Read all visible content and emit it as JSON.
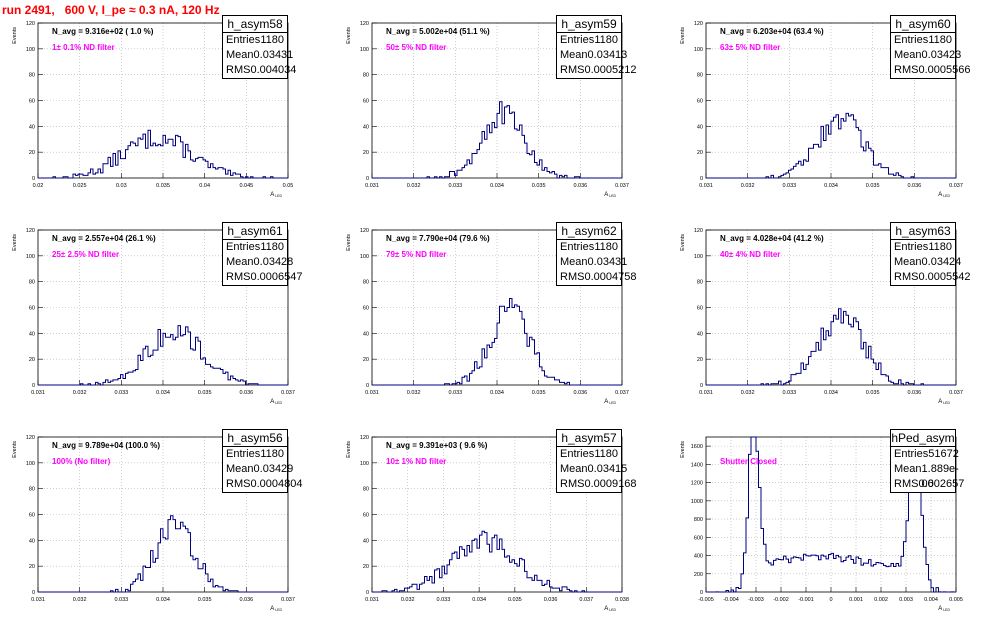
{
  "page": {
    "title": "run 2491,   600 V, I_pe ≈ 0.3 nA, 120 Hz"
  },
  "colors": {
    "hist": "#000080",
    "annotation": "#ff00ff",
    "title": "#ff0000",
    "grid": "#b0b0b0"
  },
  "chart_data": [
    {
      "type": "bar",
      "name": "h_asym58",
      "xlabel": "A_LED",
      "ylabel": "Events",
      "xlim": [
        0.02,
        0.05
      ],
      "ylim": [
        0,
        120
      ],
      "xticks": [
        "0.02",
        "0.025",
        "0.03",
        "0.035",
        "0.04",
        "0.045",
        "0.05"
      ],
      "yticks": [
        "0",
        "20",
        "40",
        "60",
        "80",
        "100",
        "120"
      ],
      "navg": "N_avg = 9.316e+02 ( 1.0 %)",
      "filter": "1± 0.1% ND filter",
      "stats": {
        "title": "h_asym58",
        "entries": "1180",
        "mean": "0.03431",
        "rms": "0.004034"
      },
      "dist": {
        "mean": 0.03431,
        "rms": 0.004034,
        "peak": 38,
        "nbins": 100
      }
    },
    {
      "type": "bar",
      "name": "h_asym59",
      "xlabel": "A_LED",
      "ylabel": "Events",
      "xlim": [
        0.031,
        0.037
      ],
      "ylim": [
        0,
        120
      ],
      "xticks": [
        "0.031",
        "0.032",
        "0.033",
        "0.034",
        "0.035",
        "0.036",
        "0.037"
      ],
      "yticks": [
        "0",
        "20",
        "40",
        "60",
        "80",
        "100",
        "120"
      ],
      "navg": "N_avg = 5.002e+04 (51.1 %)",
      "filter": "50± 5% ND filter",
      "stats": {
        "title": "h_asym59",
        "entries": "1180",
        "mean": "0.03413",
        "rms": "0.0005212"
      },
      "dist": {
        "mean": 0.03413,
        "rms": 0.0005212,
        "peak": 60,
        "nbins": 100
      }
    },
    {
      "type": "bar",
      "name": "h_asym60",
      "xlabel": "A_LED",
      "ylabel": "Events",
      "xlim": [
        0.031,
        0.037
      ],
      "ylim": [
        0,
        120
      ],
      "xticks": [
        "0.031",
        "0.032",
        "0.033",
        "0.034",
        "0.035",
        "0.036",
        "0.037"
      ],
      "yticks": [
        "0",
        "20",
        "40",
        "60",
        "80",
        "100",
        "120"
      ],
      "navg": "N_avg = 6.203e+04 (63.4 %)",
      "filter": "63± 5% ND filter",
      "stats": {
        "title": "h_asym60",
        "entries": "1180",
        "mean": "0.03423",
        "rms": "0.0005566"
      },
      "dist": {
        "mean": 0.03423,
        "rms": 0.0005566,
        "peak": 56,
        "nbins": 100
      }
    },
    {
      "type": "bar",
      "name": "h_asym61",
      "xlabel": "A_LED",
      "ylabel": "Events",
      "xlim": [
        0.031,
        0.037
      ],
      "ylim": [
        0,
        120
      ],
      "xticks": [
        "0.031",
        "0.032",
        "0.033",
        "0.034",
        "0.035",
        "0.036",
        "0.037"
      ],
      "yticks": [
        "0",
        "20",
        "40",
        "60",
        "80",
        "100",
        "120"
      ],
      "navg": "N_avg = 2.557e+04 (26.1 %)",
      "filter": "25± 2.5% ND filter",
      "stats": {
        "title": "h_asym61",
        "entries": "1180",
        "mean": "0.03428",
        "rms": "0.0006547"
      },
      "dist": {
        "mean": 0.03428,
        "rms": 0.0006547,
        "peak": 52,
        "nbins": 100
      }
    },
    {
      "type": "bar",
      "name": "h_asym62",
      "xlabel": "A_LED",
      "ylabel": "Events",
      "xlim": [
        0.031,
        0.037
      ],
      "ylim": [
        0,
        120
      ],
      "xticks": [
        "0.031",
        "0.032",
        "0.033",
        "0.034",
        "0.035",
        "0.036",
        "0.037"
      ],
      "yticks": [
        "0",
        "20",
        "40",
        "60",
        "80",
        "100",
        "120"
      ],
      "navg": "N_avg = 7.790e+04 (79.6 %)",
      "filter": "79± 5% ND filter",
      "stats": {
        "title": "h_asym62",
        "entries": "1180",
        "mean": "0.03431",
        "rms": "0.0004758"
      },
      "dist": {
        "mean": 0.03431,
        "rms": 0.0004758,
        "peak": 70,
        "nbins": 100
      }
    },
    {
      "type": "bar",
      "name": "h_asym63",
      "xlabel": "A_LED",
      "ylabel": "Events",
      "xlim": [
        0.031,
        0.037
      ],
      "ylim": [
        0,
        120
      ],
      "xticks": [
        "0.031",
        "0.032",
        "0.033",
        "0.034",
        "0.035",
        "0.036",
        "0.037"
      ],
      "yticks": [
        "0",
        "20",
        "40",
        "60",
        "80",
        "100",
        "120"
      ],
      "navg": "N_avg = 4.028e+04 (41.2 %)",
      "filter": "40± 4% ND filter",
      "stats": {
        "title": "h_asym63",
        "entries": "1180",
        "mean": "0.03424",
        "rms": "0.0005542"
      },
      "dist": {
        "mean": 0.03424,
        "rms": 0.0005542,
        "peak": 66,
        "nbins": 100
      }
    },
    {
      "type": "bar",
      "name": "h_asym56",
      "xlabel": "A_LED",
      "ylabel": "Events",
      "xlim": [
        0.031,
        0.037
      ],
      "ylim": [
        0,
        120
      ],
      "xticks": [
        "0.031",
        "0.032",
        "0.033",
        "0.034",
        "0.035",
        "0.036",
        "0.037"
      ],
      "yticks": [
        "0",
        "20",
        "40",
        "60",
        "80",
        "100",
        "120"
      ],
      "navg": "N_avg = 9.789e+04 (100.0 %)",
      "filter": "100% (No filter)",
      "stats": {
        "title": "h_asym56",
        "entries": "1180",
        "mean": "0.03429",
        "rms": "0.0004804"
      },
      "dist": {
        "mean": 0.03429,
        "rms": 0.0004804,
        "peak": 61,
        "nbins": 100
      }
    },
    {
      "type": "bar",
      "name": "h_asym57",
      "xlabel": "A_LED",
      "ylabel": "Events",
      "xlim": [
        0.031,
        0.038
      ],
      "ylim": [
        0,
        120
      ],
      "xticks": [
        "0.031",
        "0.032",
        "0.033",
        "0.034",
        "0.035",
        "0.036",
        "0.037",
        "0.038"
      ],
      "yticks": [
        "0",
        "20",
        "40",
        "60",
        "80",
        "100",
        "120"
      ],
      "navg": "N_avg = 9.391e+03 ( 9.6 %)",
      "filter": "10± 1% ND filter",
      "stats": {
        "title": "h_asym57",
        "entries": "1180",
        "mean": "0.03415",
        "rms": "0.0009168"
      },
      "dist": {
        "mean": 0.03415,
        "rms": 0.0009168,
        "peak": 47,
        "nbins": 100
      }
    },
    {
      "type": "bar",
      "name": "hPed_asym",
      "xlabel": "A_LED",
      "ylabel": "Events",
      "xlim": [
        -0.005,
        0.005
      ],
      "ylim": [
        0,
        1700
      ],
      "xticks": [
        "-0.005",
        "-0.004",
        "-0.003",
        "-0.002",
        "-0.001",
        "0",
        "0.001",
        "0.002",
        "0.003",
        "0.004",
        "0.005"
      ],
      "yticks": [
        "0",
        "200",
        "400",
        "600",
        "800",
        "1000",
        "1200",
        "1400",
        "1600"
      ],
      "navg": "",
      "filter": "Shutter Closed",
      "stats": {
        "title": "hPed_asym",
        "entries": "51672",
        "mean": "1.889e-06",
        "rms": "0.002657"
      },
      "dist": {
        "bimodal": true,
        "peak": 1680
      }
    }
  ]
}
